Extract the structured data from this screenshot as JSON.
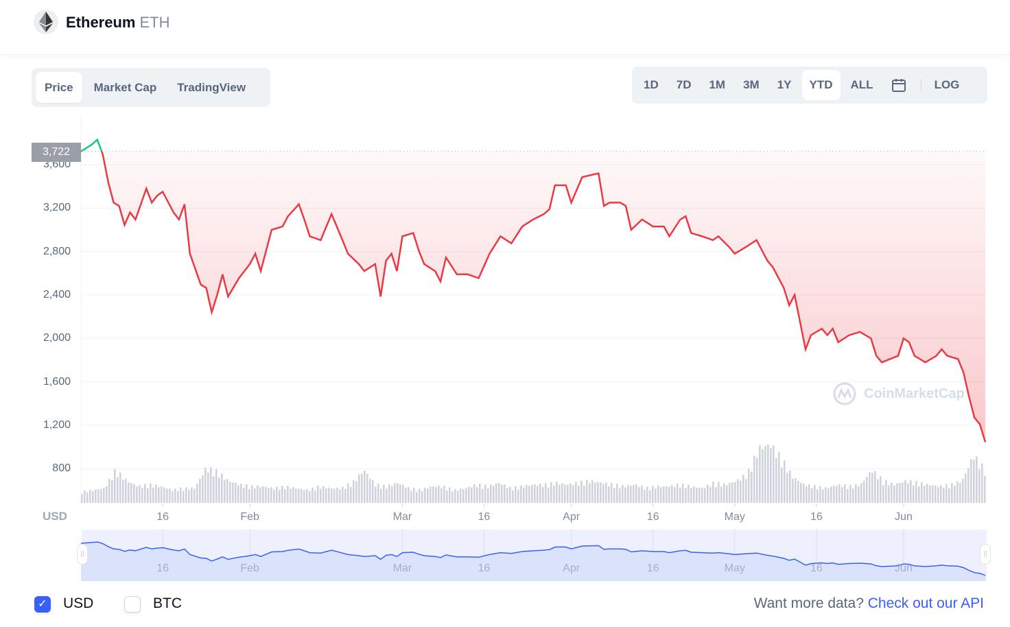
{
  "header": {
    "name": "Ethereum",
    "symbol": "ETH",
    "logo_icon": "ethereum-logo-icon"
  },
  "tabs": [
    {
      "label": "Price",
      "active": true
    },
    {
      "label": "Market Cap",
      "active": false
    },
    {
      "label": "TradingView",
      "active": false
    }
  ],
  "ranges": [
    {
      "label": "1D"
    },
    {
      "label": "7D"
    },
    {
      "label": "1M"
    },
    {
      "label": "3M"
    },
    {
      "label": "1Y"
    },
    {
      "label": "YTD",
      "active": true
    },
    {
      "label": "ALL"
    }
  ],
  "calendar_icon": "calendar-icon",
  "log_label": "LOG",
  "currency_label": "USD",
  "watermark": "CoinMarketCap",
  "footer": {
    "currencies": [
      {
        "label": "USD",
        "checked": true
      },
      {
        "label": "BTC",
        "checked": false
      }
    ],
    "api_prompt": "Want more data?",
    "api_link": "Check out our API"
  },
  "colors": {
    "up": "#16c784",
    "down": "#ea3943",
    "navigator": "#3861fb",
    "accent": "#3861fb"
  },
  "chart_data": {
    "type": "line",
    "reference_value": 3722,
    "reference_label": "3,722",
    "y_ticks": [
      "800",
      "1,200",
      "1,600",
      "2,000",
      "2,400",
      "2,800",
      "3,200",
      "3,600"
    ],
    "y_tick_values": [
      800,
      1200,
      1600,
      2000,
      2400,
      2800,
      3200,
      3600
    ],
    "ylim": [
      500,
      3900
    ],
    "x_ticks": [
      {
        "label": "16",
        "date": "2022-01-16"
      },
      {
        "label": "Feb",
        "date": "2022-02-01"
      },
      {
        "label": "Mar",
        "date": "2022-03-01"
      },
      {
        "label": "16",
        "date": "2022-03-16"
      },
      {
        "label": "Apr",
        "date": "2022-04-01"
      },
      {
        "label": "16",
        "date": "2022-04-16"
      },
      {
        "label": "May",
        "date": "2022-05-01"
      },
      {
        "label": "16",
        "date": "2022-05-16"
      },
      {
        "label": "Jun",
        "date": "2022-06-01"
      }
    ],
    "grid": true,
    "series": [
      {
        "points": [
          [
            "2022-01-01",
            3722
          ],
          [
            "2022-01-03",
            3785
          ],
          [
            "2022-01-04",
            3830
          ],
          [
            "2022-01-05",
            3694
          ],
          [
            "2022-01-06",
            3440
          ],
          [
            "2022-01-07",
            3250
          ],
          [
            "2022-01-08",
            3220
          ],
          [
            "2022-01-09",
            3045
          ],
          [
            "2022-01-10",
            3160
          ],
          [
            "2022-01-11",
            3095
          ],
          [
            "2022-01-13",
            3380
          ],
          [
            "2022-01-14",
            3250
          ],
          [
            "2022-01-15",
            3315
          ],
          [
            "2022-01-16",
            3350
          ],
          [
            "2022-01-18",
            3160
          ],
          [
            "2022-01-19",
            3095
          ],
          [
            "2022-01-20",
            3235
          ],
          [
            "2022-01-21",
            2780
          ],
          [
            "2022-01-23",
            2495
          ],
          [
            "2022-01-24",
            2465
          ],
          [
            "2022-01-25",
            2240
          ],
          [
            "2022-01-26",
            2400
          ],
          [
            "2022-01-27",
            2590
          ],
          [
            "2022-01-28",
            2385
          ],
          [
            "2022-01-30",
            2555
          ],
          [
            "2022-01-31",
            2620
          ],
          [
            "2022-02-01",
            2685
          ],
          [
            "2022-02-02",
            2780
          ],
          [
            "2022-02-03",
            2620
          ],
          [
            "2022-02-05",
            3000
          ],
          [
            "2022-02-07",
            3030
          ],
          [
            "2022-02-08",
            3125
          ],
          [
            "2022-02-10",
            3235
          ],
          [
            "2022-02-11",
            3095
          ],
          [
            "2022-02-12",
            2940
          ],
          [
            "2022-02-14",
            2905
          ],
          [
            "2022-02-16",
            3145
          ],
          [
            "2022-02-18",
            2905
          ],
          [
            "2022-02-19",
            2780
          ],
          [
            "2022-02-21",
            2685
          ],
          [
            "2022-02-22",
            2620
          ],
          [
            "2022-02-24",
            2685
          ],
          [
            "2022-02-25",
            2385
          ],
          [
            "2022-02-26",
            2715
          ],
          [
            "2022-02-27",
            2780
          ],
          [
            "2022-02-28",
            2620
          ],
          [
            "2022-03-01",
            2940
          ],
          [
            "2022-03-03",
            2970
          ],
          [
            "2022-03-04",
            2810
          ],
          [
            "2022-03-05",
            2685
          ],
          [
            "2022-03-07",
            2620
          ],
          [
            "2022-03-08",
            2525
          ],
          [
            "2022-03-09",
            2745
          ],
          [
            "2022-03-11",
            2590
          ],
          [
            "2022-03-13",
            2590
          ],
          [
            "2022-03-15",
            2555
          ],
          [
            "2022-03-17",
            2780
          ],
          [
            "2022-03-19",
            2940
          ],
          [
            "2022-03-21",
            2875
          ],
          [
            "2022-03-23",
            3030
          ],
          [
            "2022-03-25",
            3095
          ],
          [
            "2022-03-27",
            3145
          ],
          [
            "2022-03-28",
            3190
          ],
          [
            "2022-03-29",
            3410
          ],
          [
            "2022-03-31",
            3410
          ],
          [
            "2022-04-01",
            3250
          ],
          [
            "2022-04-03",
            3485
          ],
          [
            "2022-04-06",
            3520
          ],
          [
            "2022-04-07",
            3220
          ],
          [
            "2022-04-08",
            3250
          ],
          [
            "2022-04-10",
            3250
          ],
          [
            "2022-04-11",
            3220
          ],
          [
            "2022-04-12",
            3000
          ],
          [
            "2022-04-14",
            3095
          ],
          [
            "2022-04-16",
            3030
          ],
          [
            "2022-04-18",
            3030
          ],
          [
            "2022-04-19",
            2940
          ],
          [
            "2022-04-21",
            3095
          ],
          [
            "2022-04-22",
            3125
          ],
          [
            "2022-04-23",
            2970
          ],
          [
            "2022-04-25",
            2940
          ],
          [
            "2022-04-27",
            2905
          ],
          [
            "2022-04-28",
            2940
          ],
          [
            "2022-04-30",
            2840
          ],
          [
            "2022-05-01",
            2780
          ],
          [
            "2022-05-03",
            2840
          ],
          [
            "2022-05-05",
            2905
          ],
          [
            "2022-05-07",
            2715
          ],
          [
            "2022-05-08",
            2655
          ],
          [
            "2022-05-10",
            2465
          ],
          [
            "2022-05-11",
            2305
          ],
          [
            "2022-05-12",
            2400
          ],
          [
            "2022-05-13",
            2150
          ],
          [
            "2022-05-14",
            1900
          ],
          [
            "2022-05-15",
            2030
          ],
          [
            "2022-05-17",
            2090
          ],
          [
            "2022-05-18",
            2030
          ],
          [
            "2022-05-19",
            2090
          ],
          [
            "2022-05-20",
            1965
          ],
          [
            "2022-05-22",
            2030
          ],
          [
            "2022-05-24",
            2060
          ],
          [
            "2022-05-26",
            2000
          ],
          [
            "2022-05-27",
            1840
          ],
          [
            "2022-05-28",
            1780
          ],
          [
            "2022-05-31",
            1840
          ],
          [
            "2022-06-01",
            2000
          ],
          [
            "2022-06-02",
            1965
          ],
          [
            "2022-06-03",
            1840
          ],
          [
            "2022-06-05",
            1780
          ],
          [
            "2022-06-07",
            1840
          ],
          [
            "2022-06-08",
            1900
          ],
          [
            "2022-06-09",
            1840
          ],
          [
            "2022-06-11",
            1810
          ],
          [
            "2022-06-12",
            1685
          ],
          [
            "2022-06-13",
            1465
          ],
          [
            "2022-06-14",
            1270
          ],
          [
            "2022-06-15",
            1210
          ],
          [
            "2022-06-16",
            1045
          ]
        ]
      }
    ],
    "volume_relative": [
      0.3,
      0.35,
      0.4,
      0.9,
      0.6,
      0.45,
      0.5,
      0.45,
      0.35,
      0.4,
      0.4,
      0.95,
      0.85,
      0.6,
      0.5,
      0.45,
      0.45,
      0.4,
      0.45,
      0.4,
      0.35,
      0.45,
      0.4,
      0.4,
      0.55,
      0.9,
      0.5,
      0.45,
      0.55,
      0.4,
      0.35,
      0.45,
      0.45,
      0.35,
      0.4,
      0.5,
      0.45,
      0.55,
      0.4,
      0.45,
      0.5,
      0.5,
      0.55,
      0.5,
      0.55,
      0.6,
      0.55,
      0.5,
      0.45,
      0.5,
      0.4,
      0.45,
      0.45,
      0.5,
      0.45,
      0.4,
      0.55,
      0.5,
      0.6,
      0.8,
      1.5,
      1.6,
      1.2,
      0.7,
      0.5,
      0.45,
      0.4,
      0.5,
      0.45,
      0.5,
      0.9,
      0.6,
      0.5,
      0.6,
      0.55,
      0.5,
      0.45,
      0.5,
      0.6,
      1.3,
      0.9
    ]
  }
}
